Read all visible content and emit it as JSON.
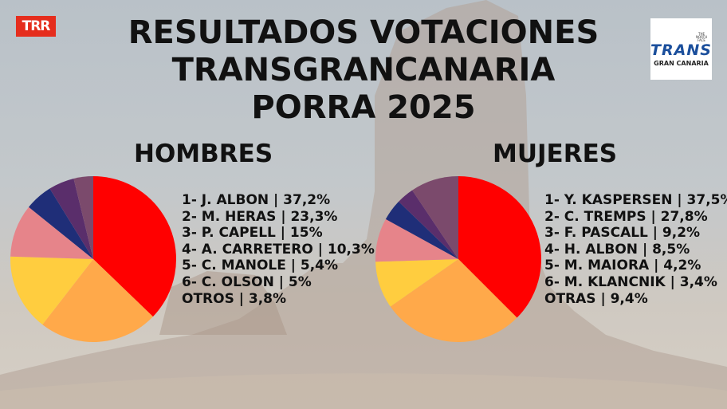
{
  "logos": {
    "left": "TRR",
    "right_main": "TRANS",
    "right_sub": "GRAN CANARIA",
    "right_badge": "THE NORTH FACE"
  },
  "title": [
    "RESULTADOS VOTACIONES",
    "TRANSGRANCANARIA",
    "PORRA 2025"
  ],
  "colors": {
    "red": "#ff0000",
    "orange": "#ffa94a",
    "yellow": "#ffcd3f",
    "pink": "#e6848a",
    "navy": "#1f2e78",
    "purple": "#5a2e6b",
    "mauve": "#7b4a6c"
  },
  "chart_data": [
    {
      "type": "pie",
      "title": "HOMBRES",
      "categories": [
        "1- J. ALBON | 37,2%",
        "2- M. HERAS | 23,3%",
        "3- P. CAPELL | 15%",
        "4- A. CARRETERO | 10,3%",
        "5- C. MANOLE | 5,4%",
        "6- C. OLSON | 5%",
        "OTROS | 3,8%"
      ],
      "values": [
        37.2,
        23.3,
        15,
        10.3,
        5.4,
        5,
        3.8
      ],
      "colors": [
        "#ff0000",
        "#ffa94a",
        "#ffcd3f",
        "#e6848a",
        "#1f2e78",
        "#5a2e6b",
        "#7b4a6c"
      ],
      "legend": "right"
    },
    {
      "type": "pie",
      "title": "MUJERES",
      "categories": [
        "1- Y. KASPERSEN | 37,5%",
        "2- C. TREMPS | 27,8%",
        "3- F. PASCALL | 9,2%",
        "4- H. ALBON | 8,5%",
        "5- M. MAIORA | 4,2%",
        "6- M. KLANCNIK | 3,4%",
        "OTRAS | 9,4%"
      ],
      "values": [
        37.5,
        27.8,
        9.2,
        8.5,
        4.2,
        3.4,
        9.4
      ],
      "colors": [
        "#ff0000",
        "#ffa94a",
        "#ffcd3f",
        "#e6848a",
        "#1f2e78",
        "#5a2e6b",
        "#7b4a6c"
      ],
      "legend": "right"
    }
  ]
}
